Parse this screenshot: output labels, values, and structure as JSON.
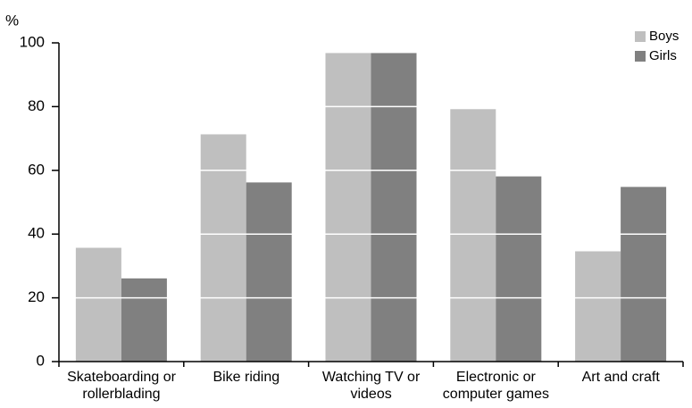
{
  "chart_data": {
    "type": "bar",
    "y_unit": "%",
    "categories": [
      "Skateboarding or rollerblading",
      "Bike riding",
      "Watching TV or videos",
      "Electronic or computer games",
      "Art and craft"
    ],
    "series": [
      {
        "name": "Boys",
        "color": "#bfbfbf",
        "values": [
          35.7,
          71.3,
          96.8,
          79.2,
          34.6
        ]
      },
      {
        "name": "Girls",
        "color": "#808080",
        "values": [
          26.1,
          56.2,
          96.8,
          58.1,
          54.8
        ]
      }
    ],
    "ylim": [
      0,
      100
    ],
    "yticks": [
      0,
      20,
      40,
      60,
      80,
      100
    ],
    "grid": true,
    "grid_color": "#ffffff",
    "legend": "top-right"
  }
}
